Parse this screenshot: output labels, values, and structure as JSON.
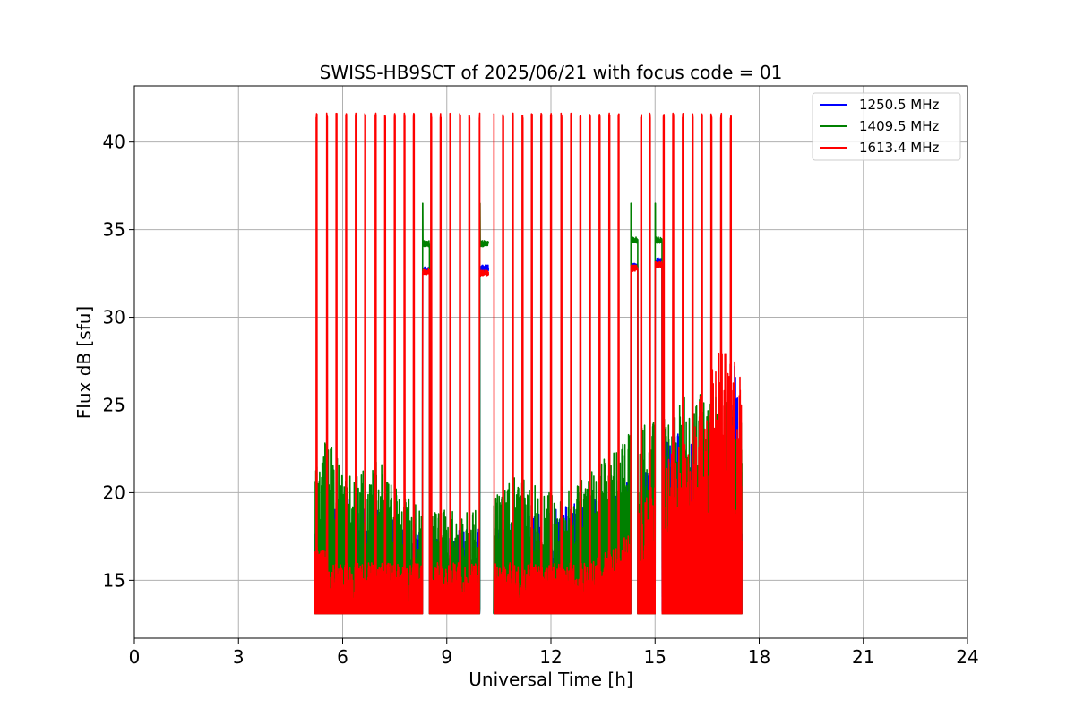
{
  "chart_data": {
    "type": "line",
    "title": "SWISS-HB9SCT of 2025/06/21 with focus code = 01",
    "xlabel": "Universal Time [h]",
    "ylabel": "Flux dB [sfu]",
    "xlim": [
      0,
      24
    ],
    "ylim": [
      11.7,
      43.2
    ],
    "xticks": [
      0,
      3,
      6,
      9,
      12,
      15,
      18,
      21,
      24
    ],
    "yticks": [
      15,
      20,
      25,
      30,
      35,
      40
    ],
    "grid": true,
    "legend_position": "top-right",
    "floor_value": 13.1,
    "gaps": [
      [
        8.3,
        8.5
      ],
      [
        10.2,
        10.35
      ],
      [
        14.3,
        14.45
      ],
      [
        15.0,
        15.2
      ]
    ],
    "sweep_times": [
      5.25,
      5.55,
      5.82,
      6.1,
      6.38,
      6.65,
      6.95,
      7.22,
      7.5,
      7.78,
      8.05,
      8.55,
      8.82,
      9.1,
      9.38,
      9.65,
      9.95,
      10.35,
      10.62,
      10.9,
      11.18,
      11.45,
      11.72,
      12.0,
      12.3,
      12.58,
      12.85,
      13.12,
      13.4,
      13.68,
      13.95,
      14.6,
      14.85,
      15.25,
      15.52,
      15.8,
      16.08,
      16.35,
      16.62,
      16.9,
      17.18
    ],
    "sweep_peak": 41.5,
    "calibration_plateaus": [
      {
        "x": [
          8.3,
          8.5
        ],
        "y_1250_5": 32.7,
        "y_1409_5": 34.2,
        "y_1613_4": 32.6,
        "spike_1409_5": 36.5
      },
      {
        "x": [
          9.95,
          10.2
        ],
        "y_1250_5": 32.8,
        "y_1409_5": 34.2,
        "y_1613_4": 32.5,
        "spike_1409_5": 36.5
      },
      {
        "x": [
          14.3,
          14.5
        ],
        "y_1250_5": 32.9,
        "y_1409_5": 34.4,
        "y_1613_4": 32.8,
        "spike_1409_5": 36.5
      },
      {
        "x": [
          15.0,
          15.2
        ],
        "y_1250_5": 33.2,
        "y_1409_5": 34.4,
        "y_1613_4": 33.0,
        "spike_1409_5": 36.5
      }
    ],
    "series": [
      {
        "name": "1250.5 MHz",
        "color": "#0000ff",
        "x_range": [
          5.2,
          17.5
        ],
        "background": [
          [
            5.25,
            18
          ],
          [
            6,
            20
          ],
          [
            7,
            19
          ],
          [
            8,
            18
          ],
          [
            9,
            18
          ],
          [
            10,
            18
          ],
          [
            11,
            19
          ],
          [
            12,
            19
          ],
          [
            13,
            20
          ],
          [
            14,
            21
          ],
          [
            15.3,
            23
          ],
          [
            16,
            24
          ],
          [
            16.8,
            15
          ],
          [
            17.3,
            27.7
          ]
        ]
      },
      {
        "name": "1409.5 MHz",
        "color": "#008000",
        "x_range": [
          5.2,
          17.5
        ],
        "background": [
          [
            5.25,
            22
          ],
          [
            5.6,
            23.5
          ],
          [
            6,
            21
          ],
          [
            7,
            22
          ],
          [
            8,
            19.5
          ],
          [
            9,
            19
          ],
          [
            10,
            19
          ],
          [
            11,
            21
          ],
          [
            12,
            20
          ],
          [
            13,
            21
          ],
          [
            14,
            23
          ],
          [
            14.6,
            24
          ],
          [
            15.5,
            25
          ],
          [
            16.2,
            26
          ],
          [
            17.0,
            26
          ],
          [
            17.3,
            25.5
          ]
        ]
      },
      {
        "name": "1613.4 MHz",
        "color": "#ff0000",
        "x_range": [
          5.2,
          17.5
        ],
        "background": [
          [
            5.25,
            17
          ],
          [
            6,
            16
          ],
          [
            7,
            16
          ],
          [
            8,
            16
          ],
          [
            9,
            16
          ],
          [
            10,
            16
          ],
          [
            11,
            16
          ],
          [
            12,
            16
          ],
          [
            13,
            16
          ],
          [
            14,
            17
          ],
          [
            15.3,
            22
          ],
          [
            16,
            24
          ],
          [
            16.8,
            28
          ],
          [
            17.3,
            28.2
          ]
        ]
      }
    ]
  }
}
